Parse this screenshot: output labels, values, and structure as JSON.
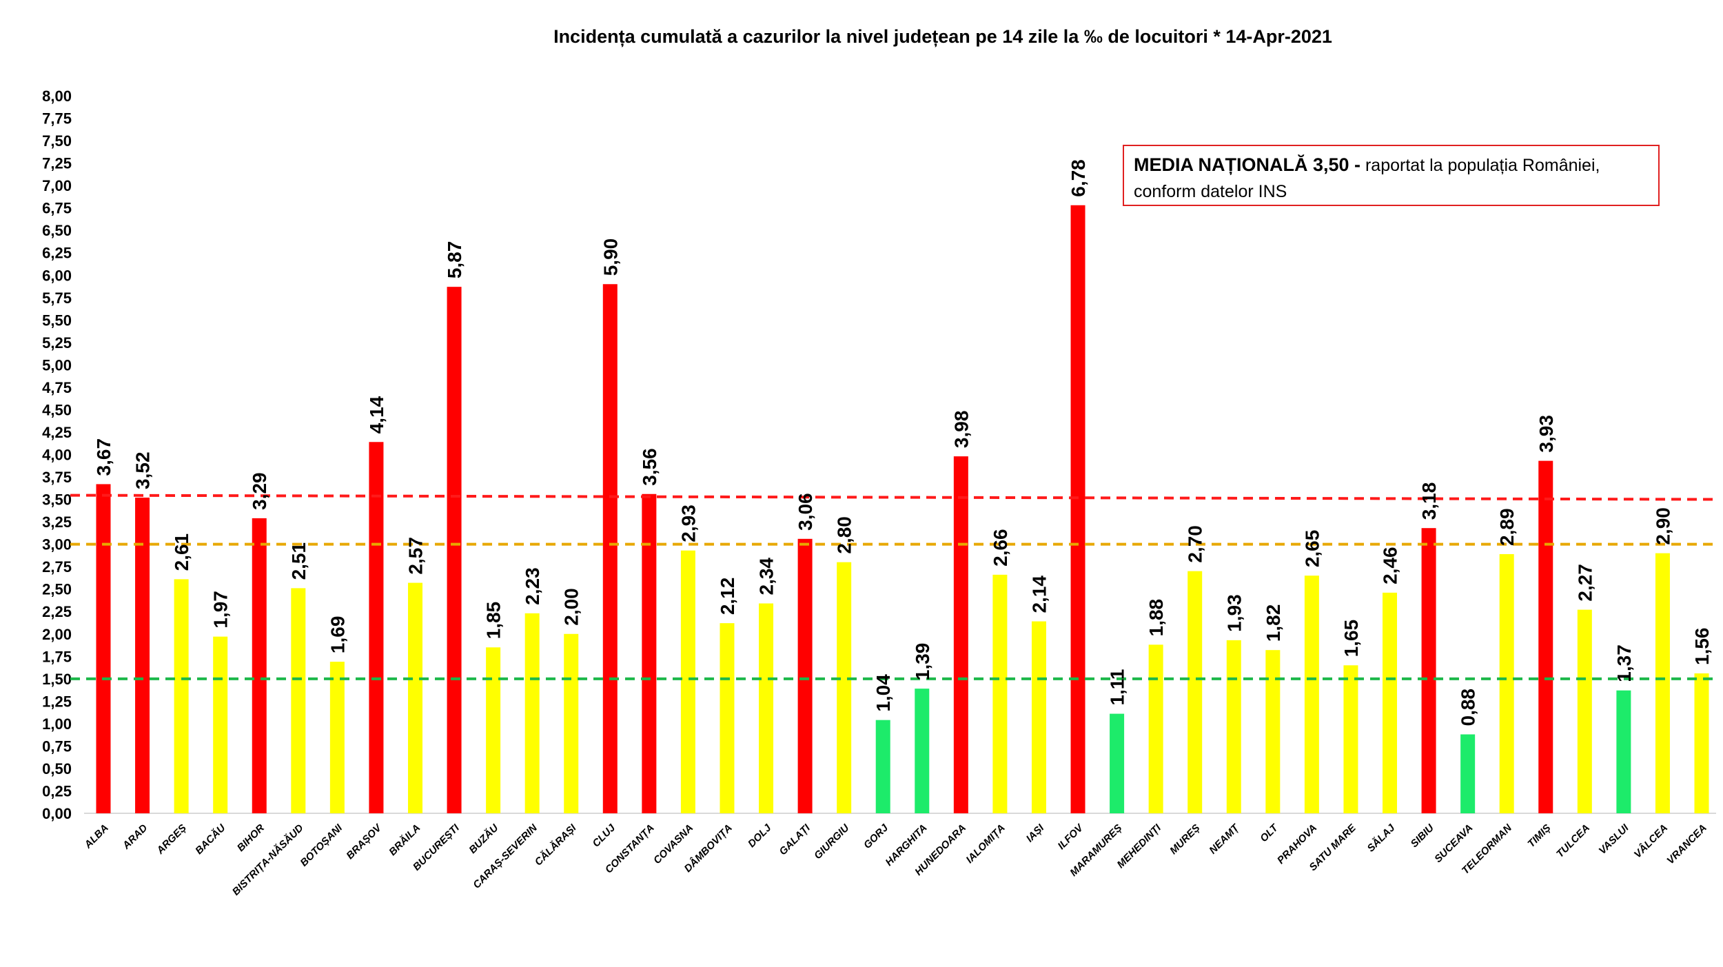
{
  "chart_data": {
    "type": "bar",
    "title": "Incidența cumulată a cazurilor la nivel județean pe 14 zile   la ‰ de locuitori  *   14-Apr-2021",
    "xlabel": "",
    "ylabel": "",
    "ylim": [
      0,
      8
    ],
    "yticks": [
      "0,00",
      "0,25",
      "0,50",
      "0,75",
      "1,00",
      "1,25",
      "1,50",
      "1,75",
      "2,00",
      "2,25",
      "2,50",
      "2,75",
      "3,00",
      "3,25",
      "3,50",
      "3,75",
      "4,00",
      "4,25",
      "4,50",
      "4,75",
      "5,00",
      "5,25",
      "5,50",
      "5,75",
      "6,00",
      "6,25",
      "6,50",
      "6,75",
      "7,00",
      "7,25",
      "7,50",
      "7,75",
      "8,00"
    ],
    "grid": false,
    "categories": [
      "ALBA",
      "ARAD",
      "ARGEȘ",
      "BACĂU",
      "BIHOR",
      "BISTRIȚA-NĂSĂUD",
      "BOTOȘANI",
      "BRAȘOV",
      "BRĂILA",
      "BUCUREȘTI",
      "BUZĂU",
      "CARAȘ-SEVERIN",
      "CĂLĂRAȘI",
      "CLUJ",
      "CONSTANȚA",
      "COVASNA",
      "DÂMBOVIȚA",
      "DOLJ",
      "GALAȚI",
      "GIURGIU",
      "GORJ",
      "HARGHITA",
      "HUNEDOARA",
      "IALOMIȚA",
      "IAȘI",
      "ILFOV",
      "MARAMUREȘ",
      "MEHEDINȚI",
      "MUREȘ",
      "NEAMȚ",
      "OLT",
      "PRAHOVA",
      "SATU MARE",
      "SĂLAJ",
      "SIBIU",
      "SUCEAVA",
      "TELEORMAN",
      "TIMIȘ",
      "TULCEA",
      "VASLUI",
      "VÂLCEA",
      "VRANCEA"
    ],
    "values": [
      3.67,
      3.52,
      2.61,
      1.97,
      3.29,
      2.51,
      1.69,
      4.14,
      2.57,
      5.87,
      1.85,
      2.23,
      2.0,
      5.9,
      3.56,
      2.93,
      2.12,
      2.34,
      3.06,
      2.8,
      1.04,
      1.39,
      3.98,
      2.66,
      2.14,
      6.78,
      1.11,
      1.88,
      2.7,
      1.93,
      1.82,
      2.65,
      1.65,
      2.46,
      3.18,
      0.88,
      2.89,
      3.93,
      2.27,
      1.37,
      2.9,
      1.56
    ],
    "value_labels": [
      "3,67",
      "3,52",
      "2,61",
      "1,97",
      "3,29",
      "2,51",
      "1,69",
      "4,14",
      "2,57",
      "5,87",
      "1,85",
      "2,23",
      "2,00",
      "5,90",
      "3,56",
      "2,93",
      "2,12",
      "2,34",
      "3,06",
      "2,80",
      "1,04",
      "1,39",
      "3,98",
      "2,66",
      "2,14",
      "6,78",
      "1,11",
      "1,88",
      "2,70",
      "1,93",
      "1,82",
      "2,65",
      "1,65",
      "2,46",
      "3,18",
      "0,88",
      "2,89",
      "3,93",
      "2,27",
      "1,37",
      "2,90",
      "1,56"
    ],
    "bar_colors": {
      "high": "#FF0000",
      "medium": "#FFFF00",
      "low": "#1DEB6A"
    },
    "thresholds": [
      {
        "value": 3.5,
        "color": "#FF1A1A",
        "style": "dashed"
      },
      {
        "value": 3.0,
        "color": "#E8A800",
        "style": "dashed"
      },
      {
        "value": 1.5,
        "color": "#1DB84A",
        "style": "dashed"
      }
    ],
    "annotation": {
      "bold": "MEDIA NAȚIONALĂ 3,50 -",
      "text": " raportat la populația României,",
      "line2": "conform datelor INS",
      "border_color": "#E02020"
    }
  }
}
